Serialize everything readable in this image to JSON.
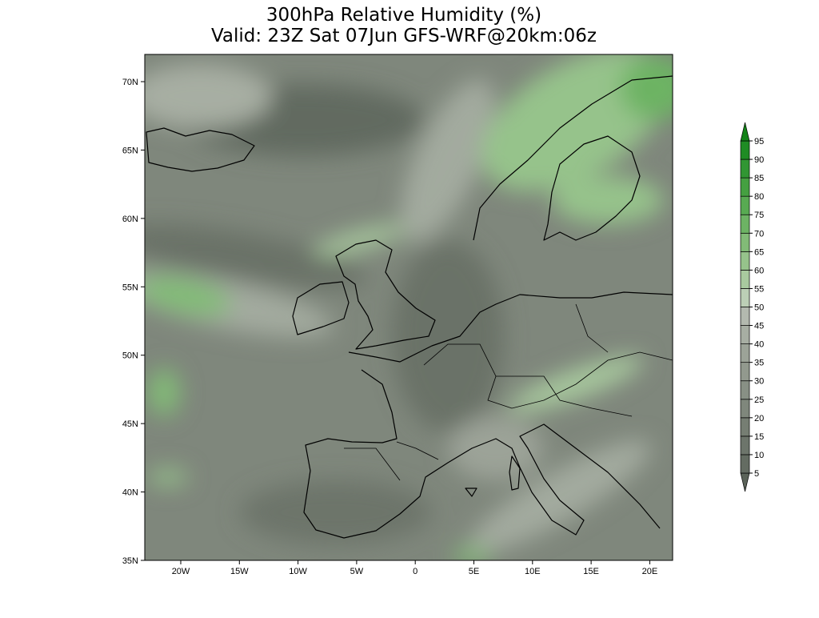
{
  "title": [
    "300hPa Relative Humidity (%)",
    "Valid: 23Z Sat 07Jun GFS-WRF@20km:06z"
  ],
  "lat_labels": [
    "70N",
    "65N",
    "60N",
    "55N",
    "50N",
    "45N",
    "40N",
    "35N"
  ],
  "lon_labels": [
    "20W",
    "15W",
    "10W",
    "5W",
    "0",
    "5E",
    "10E",
    "15E",
    "20E"
  ],
  "colorbar": {
    "levels": [
      5,
      10,
      15,
      20,
      25,
      30,
      35,
      40,
      45,
      50,
      55,
      60,
      65,
      70,
      75,
      80,
      85,
      90,
      95
    ],
    "colors": [
      "#5b6359",
      "#646c62",
      "#6d756b",
      "#767e73",
      "#7f877c",
      "#889085",
      "#92998e",
      "#9ca398",
      "#a7aea3",
      "#b3b9af",
      "#bccfb6",
      "#a9ca9f",
      "#96c38b",
      "#82bb77",
      "#6db364",
      "#58aa52",
      "#45a041",
      "#319633",
      "#1f8c24",
      "#138318"
    ]
  }
}
